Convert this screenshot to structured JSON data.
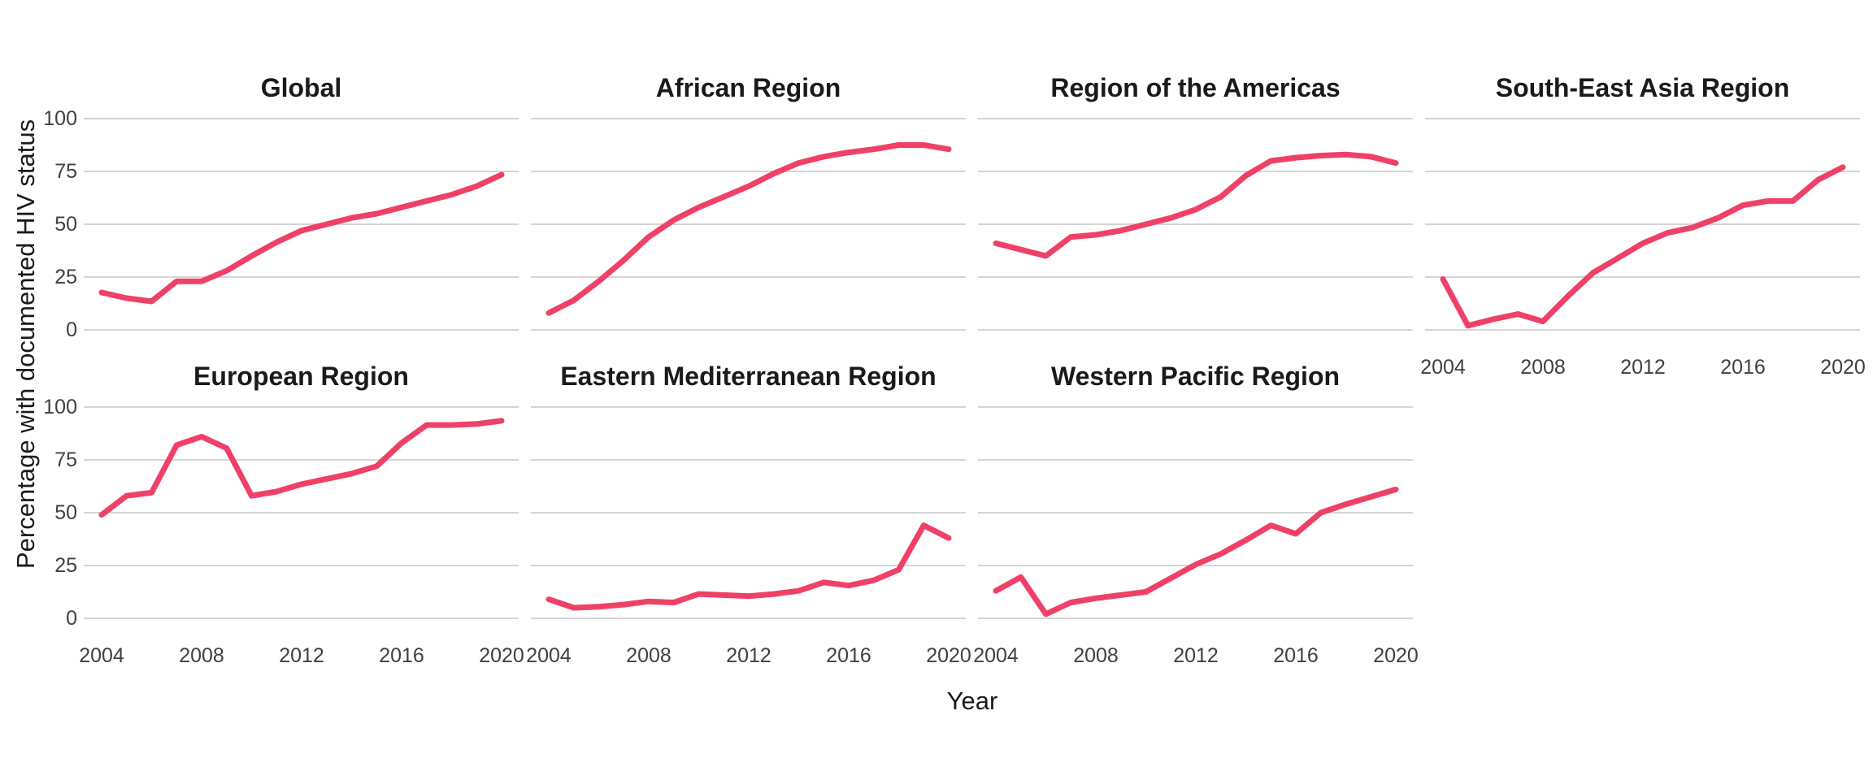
{
  "chart_data": {
    "type": "line",
    "xlabel": "Year",
    "ylabel": "Percentage with documented HIV status",
    "x": [
      2004,
      2005,
      2006,
      2007,
      2008,
      2009,
      2010,
      2011,
      2012,
      2013,
      2014,
      2015,
      2016,
      2017,
      2018,
      2019,
      2020
    ],
    "x_ticks": [
      2004,
      2008,
      2012,
      2016,
      2020
    ],
    "y_ticks": [
      0,
      25,
      50,
      75,
      100
    ],
    "ylim": [
      0,
      100
    ],
    "grid": "horizontal-major-only",
    "legend": "none",
    "line_color": "#EF4168",
    "series": [
      {
        "name": "Global",
        "values": [
          17.7,
          15,
          13.5,
          23,
          23,
          28,
          35,
          41.5,
          47,
          50,
          53,
          55,
          58,
          61,
          64,
          68,
          73.5
        ]
      },
      {
        "name": "African Region",
        "values": [
          8,
          14,
          23,
          33,
          44,
          52,
          58,
          63,
          68,
          74,
          79,
          82,
          84,
          85.5,
          87.5,
          87.5,
          85.5
        ]
      },
      {
        "name": "Region of the Americas",
        "values": [
          41,
          38,
          35,
          44,
          45,
          47,
          50,
          53,
          57,
          63,
          73,
          80,
          81.5,
          82.5,
          83,
          82,
          79
        ]
      },
      {
        "name": "South-East Asia Region",
        "values": [
          24,
          2,
          5,
          7.5,
          4,
          16,
          27,
          34,
          41,
          46,
          48.5,
          53,
          59,
          61,
          61,
          71,
          77
        ]
      },
      {
        "name": "European Region",
        "values": [
          49,
          58,
          59.5,
          82,
          86,
          80.5,
          58,
          60,
          63.5,
          66,
          68.5,
          72,
          83,
          91.5,
          91.5,
          92,
          93.5
        ]
      },
      {
        "name": "Eastern Mediterranean Region",
        "values": [
          9,
          5,
          5.5,
          6.5,
          8,
          7.5,
          11.5,
          11,
          10.5,
          11.5,
          13,
          17,
          15.5,
          18,
          23,
          44,
          38
        ]
      },
      {
        "name": "Western Pacific Region",
        "values": [
          13,
          19.5,
          2,
          7.5,
          9.5,
          11,
          12.5,
          19,
          25.5,
          30.5,
          37,
          44,
          40,
          50,
          54,
          57.5,
          61
        ]
      }
    ]
  },
  "style": {
    "background": "#FFFFFF",
    "grid_color": "#D5D5D5",
    "axis_text_color": "#404040",
    "title_color": "#1A1A1A"
  }
}
